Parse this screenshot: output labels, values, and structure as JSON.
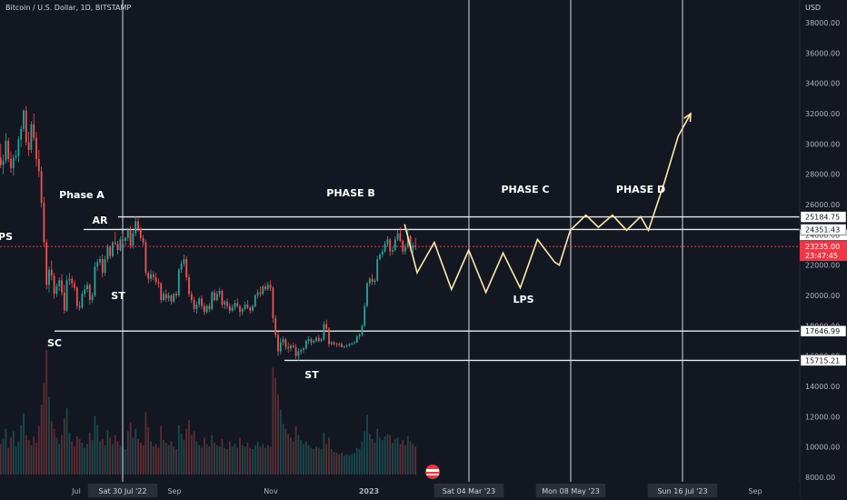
{
  "header": {
    "symbol_title": "Bitcoin / U.S. Dollar, 1D, BITSTAMP",
    "currency": "USD"
  },
  "chart_data": {
    "type": "candlestick",
    "symbol": "Bitcoin / U.S. Dollar",
    "interval": "1D",
    "exchange": "BITSTAMP",
    "y_unit": "USD",
    "ylim": [
      8000,
      39000
    ],
    "y_ticks": [
      "38000.00",
      "36000.00",
      "34000.00",
      "32000.00",
      "30000.00",
      "28000.00",
      "26000.00",
      "24000.00",
      "22000.00",
      "20000.00",
      "18000.00",
      "16000.00",
      "14000.00",
      "12000.00",
      "10000.00",
      "8000.00"
    ],
    "x_tick_labels": [
      "Jul",
      "Sep",
      "Nov",
      "2023",
      "Sep"
    ],
    "x_highlight_labels": [
      "Sat 30 Jul '22",
      "Sat 04 Mar '23",
      "Mon 08 May '23",
      "Sun 16 Jul '23"
    ],
    "current_price": "23235.00",
    "countdown": "23:47:45",
    "hidden_axis_label": "24000.00",
    "levels": [
      {
        "value": 25184.75,
        "label": "25184.75"
      },
      {
        "value": 24351.43,
        "label": "24351.43"
      },
      {
        "value": 17646.99,
        "label": "17646.99"
      },
      {
        "value": 15715.21,
        "label": "15715.21"
      }
    ],
    "phase_labels": [
      "Phase A",
      "PHASE B",
      "PHASE C",
      "PHASE D"
    ],
    "event_labels": [
      "PS",
      "AR",
      "ST",
      "SC",
      "ST",
      "LPS"
    ],
    "projection_color": "#fbe9a8",
    "candle_up_color": "#26a69a",
    "candle_down_color": "#ef5350",
    "price_line_color": "#f23645",
    "ohlc": [
      [
        28500,
        29800,
        27000,
        29100
      ],
      [
        29100,
        30000,
        28400,
        28600
      ],
      [
        28600,
        29300,
        28000,
        28900
      ],
      [
        28900,
        30700,
        28700,
        30200
      ],
      [
        30200,
        30400,
        28800,
        29000
      ],
      [
        29000,
        29500,
        28100,
        28400
      ],
      [
        28400,
        29300,
        27900,
        29100
      ],
      [
        29100,
        29600,
        28900,
        29200
      ],
      [
        29200,
        30500,
        28800,
        30300
      ],
      [
        30300,
        31200,
        29800,
        31000
      ],
      [
        31000,
        32300,
        30800,
        32200
      ],
      [
        32200,
        32500,
        29900,
        30100
      ],
      [
        30100,
        30800,
        29200,
        29600
      ],
      [
        29600,
        31500,
        29400,
        31300
      ],
      [
        31300,
        32000,
        30200,
        30400
      ],
      [
        30400,
        30800,
        28500,
        29000
      ],
      [
        29000,
        29600,
        27800,
        28200
      ],
      [
        28200,
        28500,
        25800,
        26100
      ],
      [
        26100,
        26500,
        23200,
        23500
      ],
      [
        23500,
        23700,
        20400,
        20700
      ],
      [
        20700,
        21900,
        20200,
        21700
      ],
      [
        21700,
        22300,
        21000,
        21300
      ],
      [
        21300,
        21500,
        19800,
        20100
      ],
      [
        20100,
        20800,
        19900,
        20600
      ],
      [
        20600,
        21200,
        20300,
        21000
      ],
      [
        21000,
        21400,
        20000,
        20200
      ],
      [
        20200,
        20700,
        18800,
        19000
      ],
      [
        19000,
        21300,
        18900,
        21000
      ],
      [
        21000,
        21500,
        20700,
        21100
      ],
      [
        21100,
        21300,
        20500,
        20800
      ],
      [
        20800,
        21000,
        20300,
        20500
      ],
      [
        20500,
        20600,
        19100,
        19300
      ],
      [
        19300,
        19600,
        19000,
        19200
      ],
      [
        19200,
        20300,
        19100,
        20100
      ],
      [
        20100,
        20700,
        19900,
        20400
      ],
      [
        20400,
        20900,
        20200,
        20700
      ],
      [
        20700,
        20800,
        19400,
        19700
      ],
      [
        19700,
        20200,
        19500,
        20000
      ],
      [
        20000,
        22200,
        19900,
        21900
      ],
      [
        21900,
        22400,
        21600,
        22200
      ],
      [
        22200,
        22600,
        22000,
        22400
      ],
      [
        22400,
        22700,
        21200,
        21500
      ],
      [
        21500,
        22600,
        21300,
        22400
      ],
      [
        22400,
        23400,
        22200,
        23200
      ],
      [
        23200,
        23300,
        22400,
        22600
      ],
      [
        22600,
        23600,
        22500,
        23500
      ],
      [
        23500,
        24200,
        23300,
        23400
      ],
      [
        23400,
        23600,
        22700,
        23000
      ],
      [
        23000,
        23900,
        22900,
        23700
      ],
      [
        23700,
        24100,
        23400,
        23600
      ],
      [
        23600,
        23900,
        23300,
        23800
      ],
      [
        23800,
        24500,
        23600,
        24300
      ],
      [
        24300,
        24600,
        23100,
        23300
      ],
      [
        23300,
        24300,
        23100,
        24100
      ],
      [
        24100,
        25200,
        23900,
        24900
      ],
      [
        24900,
        25100,
        24200,
        24400
      ],
      [
        24400,
        24500,
        23600,
        23800
      ],
      [
        23800,
        24000,
        23300,
        23500
      ],
      [
        23500,
        23700,
        21300,
        21500
      ],
      [
        21500,
        21600,
        20800,
        21100
      ],
      [
        21100,
        21700,
        20900,
        21400
      ],
      [
        21400,
        21600,
        21000,
        21200
      ],
      [
        21200,
        21500,
        20700,
        20900
      ],
      [
        20900,
        21100,
        20500,
        20800
      ],
      [
        20800,
        20900,
        19500,
        19700
      ],
      [
        19700,
        20300,
        19600,
        20100
      ],
      [
        20100,
        20400,
        19600,
        19800
      ],
      [
        19800,
        20200,
        19600,
        20000
      ],
      [
        20000,
        20100,
        19400,
        19600
      ],
      [
        19600,
        20200,
        19500,
        20100
      ],
      [
        20100,
        20300,
        19800,
        20000
      ],
      [
        20000,
        21800,
        19900,
        21700
      ],
      [
        21700,
        22300,
        21500,
        22100
      ],
      [
        22100,
        22700,
        21900,
        22400
      ],
      [
        22400,
        22600,
        21000,
        21200
      ],
      [
        21200,
        21400,
        19900,
        20100
      ],
      [
        20100,
        20300,
        19500,
        19700
      ],
      [
        19700,
        19900,
        18900,
        19100
      ],
      [
        19100,
        19600,
        18800,
        19400
      ],
      [
        19400,
        19900,
        19200,
        19800
      ],
      [
        19800,
        20000,
        19100,
        19300
      ],
      [
        19300,
        19500,
        18700,
        18900
      ],
      [
        18900,
        19400,
        18800,
        19300
      ],
      [
        19300,
        19500,
        18900,
        19100
      ],
      [
        19100,
        20300,
        19000,
        20200
      ],
      [
        20200,
        20400,
        19600,
        19700
      ],
      [
        19700,
        20300,
        19600,
        20100
      ],
      [
        20100,
        20500,
        19900,
        20300
      ],
      [
        20300,
        20400,
        19200,
        19400
      ],
      [
        19400,
        19700,
        19100,
        19600
      ],
      [
        19600,
        19800,
        19100,
        19300
      ],
      [
        19300,
        19500,
        18800,
        19000
      ],
      [
        19000,
        19400,
        18900,
        19200
      ],
      [
        19200,
        19700,
        19000,
        19500
      ],
      [
        19500,
        19800,
        19200,
        19300
      ],
      [
        19300,
        19400,
        18600,
        18900
      ],
      [
        18900,
        19200,
        18700,
        19100
      ],
      [
        19100,
        19600,
        19000,
        19400
      ],
      [
        19400,
        19700,
        19100,
        19200
      ],
      [
        19200,
        19300,
        18800,
        19000
      ],
      [
        19000,
        19400,
        18900,
        19300
      ],
      [
        19300,
        20100,
        19200,
        20000
      ],
      [
        20000,
        20400,
        19800,
        20200
      ],
      [
        20200,
        20600,
        19900,
        20100
      ],
      [
        20100,
        20700,
        20000,
        20600
      ],
      [
        20600,
        20800,
        20300,
        20400
      ],
      [
        20400,
        20900,
        20300,
        20700
      ],
      [
        20700,
        21000,
        20300,
        20500
      ],
      [
        20500,
        20600,
        18200,
        18500
      ],
      [
        18500,
        18700,
        17200,
        17400
      ],
      [
        17400,
        17600,
        16000,
        16300
      ],
      [
        16300,
        17200,
        16100,
        16900
      ],
      [
        16900,
        17300,
        16700,
        17100
      ],
      [
        17100,
        17200,
        16400,
        16600
      ],
      [
        16600,
        16900,
        16200,
        16500
      ],
      [
        16500,
        16800,
        16300,
        16700
      ],
      [
        16700,
        16900,
        16500,
        16600
      ],
      [
        16600,
        16800,
        15800,
        16000
      ],
      [
        16000,
        16500,
        15700,
        16300
      ],
      [
        16300,
        16500,
        16100,
        16400
      ],
      [
        16400,
        16600,
        16200,
        16500
      ],
      [
        16500,
        17100,
        16400,
        17000
      ],
      [
        17000,
        17300,
        16800,
        17100
      ],
      [
        17100,
        17200,
        16700,
        16900
      ],
      [
        16900,
        17100,
        16800,
        17000
      ],
      [
        17000,
        17300,
        16900,
        17200
      ],
      [
        17200,
        17400,
        16900,
        17000
      ],
      [
        17000,
        17200,
        16900,
        17100
      ],
      [
        17100,
        18300,
        17000,
        18100
      ],
      [
        18100,
        18400,
        17700,
        17800
      ],
      [
        17800,
        17900,
        16600,
        16800
      ],
      [
        16800,
        17000,
        16700,
        16900
      ],
      [
        16900,
        17000,
        16700,
        16800
      ],
      [
        16800,
        16900,
        16600,
        16750
      ],
      [
        16750,
        16900,
        16600,
        16800
      ],
      [
        16800,
        16900,
        16550,
        16600
      ],
      [
        16600,
        16700,
        16500,
        16650
      ],
      [
        16650,
        16800,
        16550,
        16700
      ],
      [
        16700,
        16850,
        16600,
        16800
      ],
      [
        16800,
        16900,
        16700,
        16850
      ],
      [
        16850,
        17000,
        16750,
        16900
      ],
      [
        16900,
        17400,
        16850,
        17300
      ],
      [
        17300,
        17500,
        17100,
        17400
      ],
      [
        17400,
        18100,
        17300,
        18000
      ],
      [
        18000,
        19500,
        17900,
        19300
      ],
      [
        19300,
        20900,
        19200,
        20800
      ],
      [
        20800,
        21200,
        20600,
        21100
      ],
      [
        21100,
        21400,
        20700,
        20900
      ],
      [
        20900,
        21100,
        20700,
        21000
      ],
      [
        21000,
        22600,
        20900,
        22400
      ],
      [
        22400,
        22800,
        22300,
        22700
      ],
      [
        22700,
        23100,
        22500,
        22900
      ],
      [
        22900,
        23600,
        22800,
        23400
      ],
      [
        23400,
        23900,
        23200,
        23700
      ],
      [
        23700,
        23800,
        22600,
        22900
      ],
      [
        22900,
        23200,
        22700,
        23000
      ],
      [
        23000,
        23900,
        22900,
        23700
      ],
      [
        23700,
        24300,
        23600,
        24100
      ],
      [
        24100,
        24500,
        23500,
        23600
      ],
      [
        23600,
        23700,
        22700,
        22900
      ],
      [
        22900,
        23400,
        22700,
        23200
      ],
      [
        23200,
        24400,
        23100,
        23900
      ],
      [
        23900,
        24000,
        22900,
        23100
      ],
      [
        23100,
        23500,
        22800,
        23300
      ],
      [
        23300,
        23800,
        23000,
        23235
      ]
    ],
    "volumes": [
      3.2,
      2.4,
      2.8,
      3.6,
      2.1,
      2.9,
      3.4,
      2.2,
      2.6,
      3.9,
      4.8,
      3.1,
      2.7,
      2.3,
      3.0,
      2.5,
      3.8,
      5.5,
      7.2,
      9.8,
      6.1,
      4.2,
      3.6,
      2.9,
      2.4,
      3.1,
      4.4,
      5.2,
      3.3,
      2.6,
      2.2,
      3.0,
      2.8,
      2.5,
      2.1,
      2.4,
      3.3,
      2.7,
      4.6,
      3.9,
      2.6,
      2.8,
      2.3,
      3.5,
      2.9,
      2.4,
      3.1,
      2.6,
      2.3,
      2.2,
      2.0,
      3.4,
      4.1,
      2.9,
      3.6,
      2.8,
      2.5,
      2.3,
      4.9,
      3.7,
      2.6,
      2.2,
      2.4,
      2.1,
      3.8,
      2.7,
      2.5,
      2.3,
      2.6,
      2.2,
      2.0,
      3.9,
      3.2,
      2.7,
      3.6,
      4.3,
      3.1,
      3.4,
      2.6,
      2.3,
      2.1,
      2.9,
      2.4,
      2.2,
      3.1,
      2.5,
      2.3,
      2.2,
      2.8,
      2.1,
      2.0,
      2.6,
      2.2,
      2.4,
      2.1,
      2.9,
      2.3,
      2.2,
      2.5,
      2.1,
      2.0,
      2.3,
      2.6,
      2.2,
      2.4,
      2.1,
      2.3,
      2.2,
      8.4,
      7.6,
      6.3,
      5.1,
      4.0,
      3.6,
      3.2,
      2.9,
      2.6,
      3.8,
      3.1,
      2.7,
      2.4,
      2.6,
      2.3,
      2.1,
      2.0,
      2.2,
      2.1,
      2.0,
      3.3,
      2.4,
      2.9,
      2.0,
      1.8,
      1.7,
      1.6,
      1.7,
      1.5,
      1.6,
      1.5,
      1.6,
      1.7,
      2.1,
      2.0,
      2.6,
      3.4,
      4.7,
      3.2,
      2.8,
      2.5,
      3.6,
      2.9,
      2.7,
      3.0,
      3.2,
      3.1,
      2.5,
      2.8,
      2.9,
      2.4,
      2.7,
      2.3,
      3.0,
      2.6,
      2.4,
      2.2
    ],
    "projection_path": [
      [
        0,
        24700
      ],
      [
        3,
        23500
      ],
      [
        8,
        21500
      ],
      [
        19,
        23500
      ],
      [
        30,
        20400
      ],
      [
        41,
        23000
      ],
      [
        52,
        20200
      ],
      [
        63,
        22800
      ],
      [
        74,
        20500
      ],
      [
        85,
        23700
      ],
      [
        96,
        22200
      ],
      [
        99,
        22000
      ],
      [
        106,
        24300
      ],
      [
        116,
        25300
      ],
      [
        124,
        24500
      ],
      [
        133,
        25300
      ],
      [
        142,
        24300
      ],
      [
        151,
        25200
      ],
      [
        156,
        24300
      ],
      [
        166,
        27400
      ],
      [
        175,
        30500
      ],
      [
        183,
        32000
      ]
    ],
    "projection_arrow": "arrow-head"
  }
}
